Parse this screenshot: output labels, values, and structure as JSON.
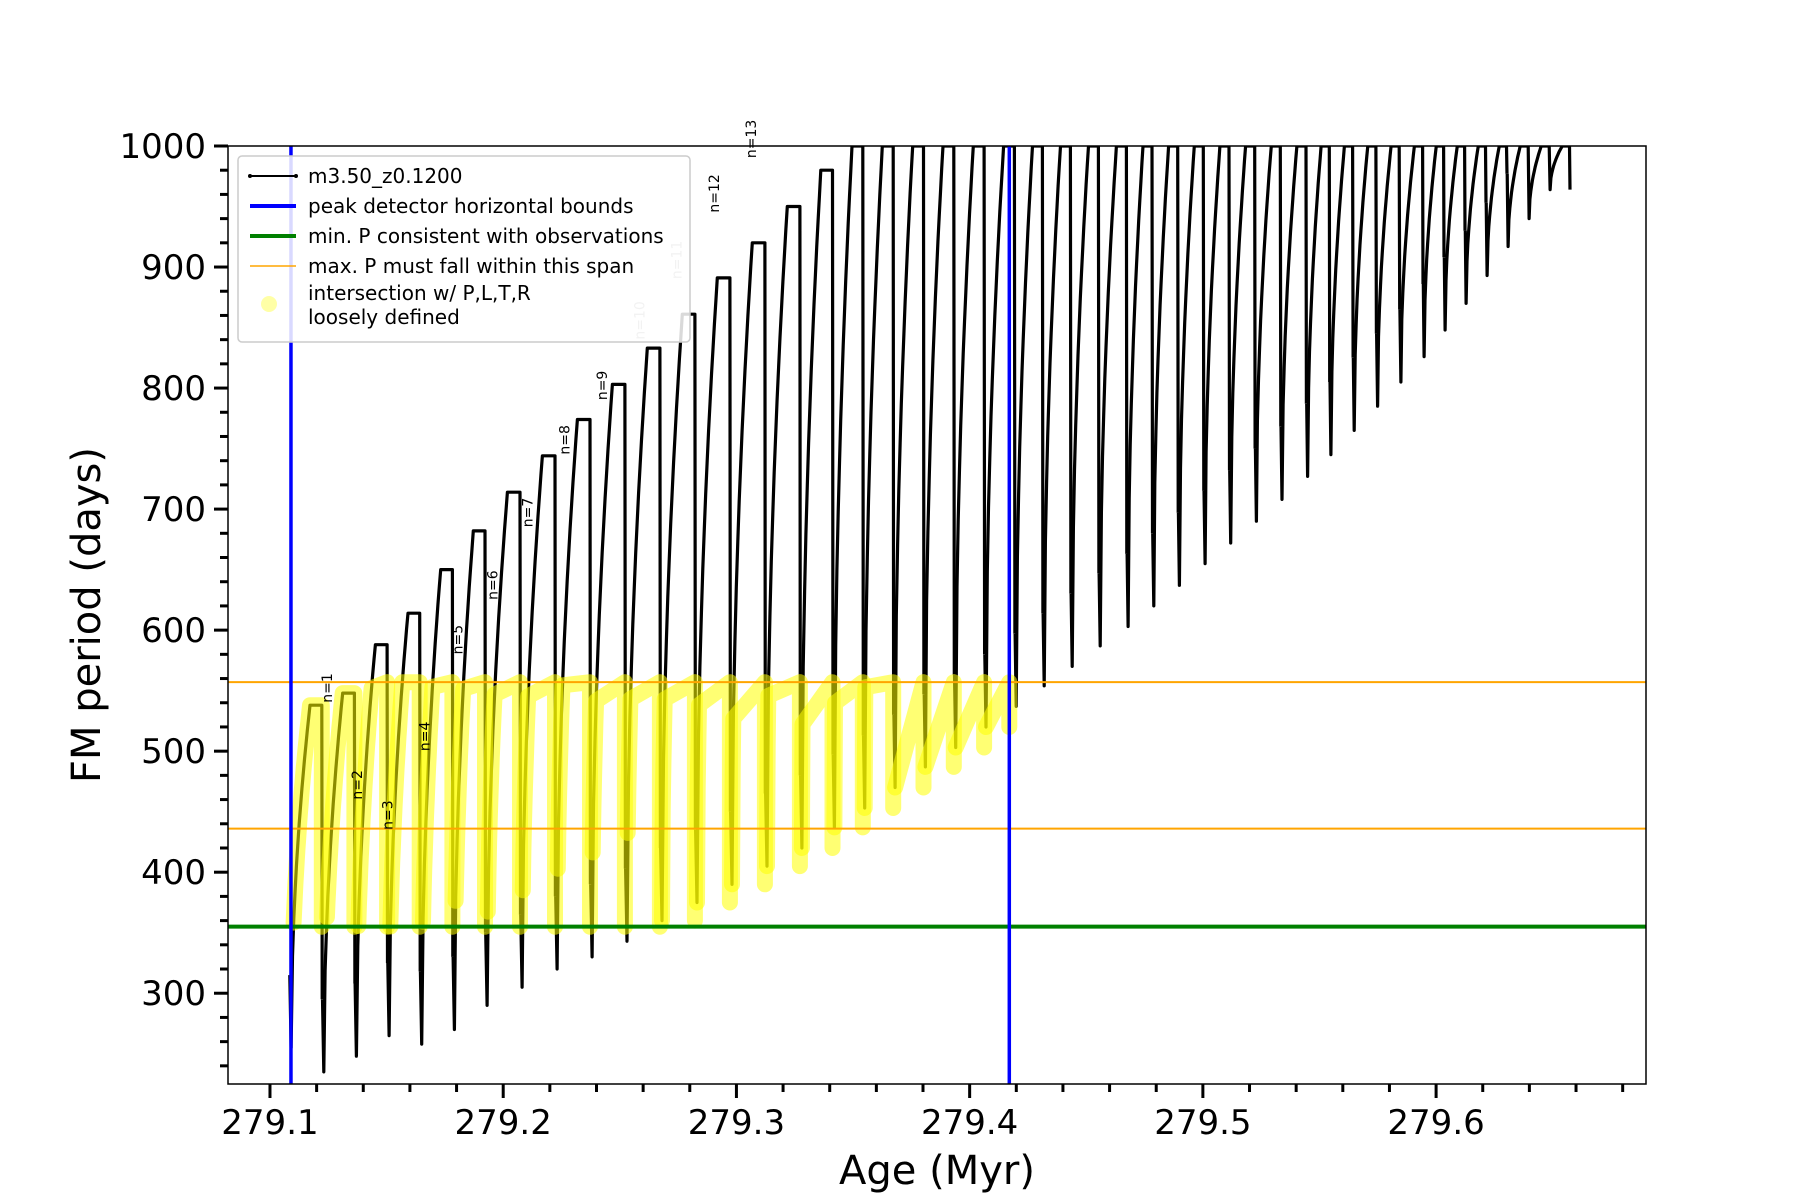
{
  "chart_data": {
    "type": "line",
    "title": "",
    "xlabel": "Age (Myr)",
    "ylabel": "FM period (days)",
    "xlim": [
      279.082,
      279.69
    ],
    "ylim": [
      225,
      1000
    ],
    "x_ticks": [
      279.1,
      279.2,
      279.3,
      279.4,
      279.5,
      279.6
    ],
    "x_tick_labels": [
      "279.1",
      "279.2",
      "279.3",
      "279.4",
      "279.5",
      "279.6"
    ],
    "y_ticks": [
      300,
      400,
      500,
      600,
      700,
      800,
      900,
      1000
    ],
    "y_tick_labels": [
      "300",
      "400",
      "500",
      "600",
      "700",
      "800",
      "900",
      "1000"
    ],
    "grid": false,
    "legend_position": "top-left",
    "legend": [
      {
        "label": "m3.50_z0.1200",
        "color": "#000000",
        "style": "line-marker"
      },
      {
        "label": "peak detector horizontal bounds",
        "color": "#0000ff",
        "style": "thick-line"
      },
      {
        "label": "min. P consistent with observations",
        "color": "#008000",
        "style": "thick-line"
      },
      {
        "label": "max. P must fall within this span",
        "color": "#ffa500",
        "style": "thin-line"
      },
      {
        "label": "intersection w/ P,L,T,R\nloosely defined",
        "color": "#ffff00",
        "style": "marker"
      }
    ],
    "vertical_lines": [
      {
        "x": 279.109,
        "color": "#0000ff",
        "role": "peak detector horizontal bounds"
      },
      {
        "x": 279.417,
        "color": "#0000ff",
        "role": "peak detector horizontal bounds"
      }
    ],
    "horizontal_lines": [
      {
        "y": 355,
        "color": "#008000",
        "role": "min. P consistent with observations"
      },
      {
        "y": 436,
        "color": "#ffa500",
        "role": "max. P span lower"
      },
      {
        "y": 557,
        "color": "#ffa500",
        "role": "max. P span upper"
      }
    ],
    "highlight_band": [
      355,
      557
    ],
    "highlight_x_end": 279.417,
    "cycles": [
      {
        "start": 279.1085,
        "min": 255,
        "peak": 538
      },
      {
        "start": 279.1225,
        "min": 235,
        "peak": 548
      },
      {
        "start": 279.1365,
        "min": 248,
        "peak": 588
      },
      {
        "start": 279.1505,
        "min": 265,
        "peak": 614
      },
      {
        "start": 279.1645,
        "min": 258,
        "peak": 650
      },
      {
        "start": 279.1785,
        "min": 270,
        "peak": 682
      },
      {
        "start": 279.1925,
        "min": 290,
        "peak": 714
      },
      {
        "start": 279.2075,
        "min": 305,
        "peak": 744
      },
      {
        "start": 279.2225,
        "min": 320,
        "peak": 774
      },
      {
        "start": 279.2375,
        "min": 330,
        "peak": 803
      },
      {
        "start": 279.2525,
        "min": 343,
        "peak": 833
      },
      {
        "start": 279.2675,
        "min": 360,
        "peak": 861
      },
      {
        "start": 279.2825,
        "min": 375,
        "peak": 891
      },
      {
        "start": 279.2975,
        "min": 390,
        "peak": 920
      },
      {
        "start": 279.3125,
        "min": 405,
        "peak": 950
      },
      {
        "start": 279.3275,
        "min": 420,
        "peak": 980
      },
      {
        "start": 279.3415,
        "min": 437,
        "peak": 1000
      },
      {
        "start": 279.3545,
        "min": 453,
        "peak": 1000
      },
      {
        "start": 279.3675,
        "min": 470,
        "peak": 1000
      },
      {
        "start": 279.3805,
        "min": 487,
        "peak": 1000
      },
      {
        "start": 279.3935,
        "min": 503,
        "peak": 1000
      },
      {
        "start": 279.4065,
        "min": 520,
        "peak": 1000
      },
      {
        "start": 279.4195,
        "min": 537,
        "peak": 1000
      },
      {
        "start": 279.4315,
        "min": 554,
        "peak": 1000
      },
      {
        "start": 279.4435,
        "min": 570,
        "peak": 1000
      },
      {
        "start": 279.4555,
        "min": 587,
        "peak": 1000
      },
      {
        "start": 279.4675,
        "min": 603,
        "peak": 1000
      },
      {
        "start": 279.4785,
        "min": 620,
        "peak": 1000
      },
      {
        "start": 279.4895,
        "min": 637,
        "peak": 1000
      },
      {
        "start": 279.5005,
        "min": 655,
        "peak": 1000
      },
      {
        "start": 279.5115,
        "min": 672,
        "peak": 1000
      },
      {
        "start": 279.5225,
        "min": 690,
        "peak": 1000
      },
      {
        "start": 279.5335,
        "min": 708,
        "peak": 1000
      },
      {
        "start": 279.5445,
        "min": 727,
        "peak": 1000
      },
      {
        "start": 279.5545,
        "min": 745,
        "peak": 1000
      },
      {
        "start": 279.5645,
        "min": 765,
        "peak": 1000
      },
      {
        "start": 279.5745,
        "min": 785,
        "peak": 1000
      },
      {
        "start": 279.5845,
        "min": 805,
        "peak": 1000
      },
      {
        "start": 279.5945,
        "min": 826,
        "peak": 1000
      },
      {
        "start": 279.6035,
        "min": 848,
        "peak": 1000
      },
      {
        "start": 279.6125,
        "min": 870,
        "peak": 1000
      },
      {
        "start": 279.6215,
        "min": 893,
        "peak": 1000
      },
      {
        "start": 279.6305,
        "min": 917,
        "peak": 1000
      },
      {
        "start": 279.6395,
        "min": 940,
        "peak": 1000
      },
      {
        "start": 279.6485,
        "min": 964,
        "peak": 1000
      }
    ],
    "annotations": [
      {
        "text": "n=1",
        "x": 279.1265,
        "y": 540,
        "color": "#000000"
      },
      {
        "text": "n=2",
        "x": 279.1395,
        "y": 460,
        "color": "#000000"
      },
      {
        "text": "n=3",
        "x": 279.1525,
        "y": 435,
        "color": "#000000"
      },
      {
        "text": "n=4",
        "x": 279.1685,
        "y": 500,
        "color": "#000000"
      },
      {
        "text": "n=5",
        "x": 279.1825,
        "y": 580,
        "color": "#000000"
      },
      {
        "text": "n=6",
        "x": 279.1975,
        "y": 625,
        "color": "#000000"
      },
      {
        "text": "n=7",
        "x": 279.2125,
        "y": 685,
        "color": "#000000"
      },
      {
        "text": "n=8",
        "x": 279.2285,
        "y": 745,
        "color": "#000000"
      },
      {
        "text": "n=9",
        "x": 279.2445,
        "y": 790,
        "color": "#000000"
      },
      {
        "text": "n=10",
        "x": 279.2605,
        "y": 840,
        "color": "#aaaaaa"
      },
      {
        "text": "n=11",
        "x": 279.2765,
        "y": 890,
        "color": "#aaaaaa"
      },
      {
        "text": "n=12",
        "x": 279.2925,
        "y": 945,
        "color": "#000000"
      },
      {
        "text": "n=13",
        "x": 279.3085,
        "y": 990,
        "color": "#000000"
      }
    ]
  }
}
